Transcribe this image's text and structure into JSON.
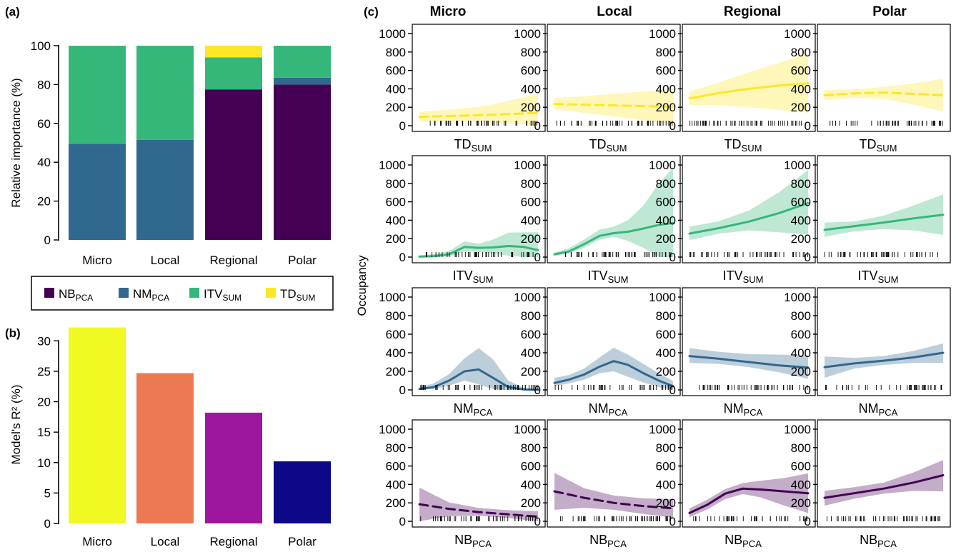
{
  "panels": {
    "a": {
      "letter": "(a)"
    },
    "b": {
      "letter": "(b)"
    },
    "c": {
      "letter": "(c)"
    }
  },
  "colors": {
    "NB": "#440154",
    "NM": "#31688e",
    "ITV": "#35b779",
    "TD": "#fde725",
    "micro_bar": "#f0f921",
    "local_bar": "#ed7953",
    "regional_bar": "#9c179e",
    "polar_bar": "#0d0887"
  },
  "legend": {
    "items": [
      {
        "key": "NB",
        "main": "NB",
        "sub": "PCA"
      },
      {
        "key": "NM",
        "main": "NM",
        "sub": "PCA"
      },
      {
        "key": "ITV",
        "main": "ITV",
        "sub": "SUM"
      },
      {
        "key": "TD",
        "main": "TD",
        "sub": "SUM"
      }
    ]
  },
  "chart_data": [
    {
      "id": "a",
      "type": "bar",
      "stacked": true,
      "categories": [
        "Micro",
        "Local",
        "Regional",
        "Polar"
      ],
      "ylabel": "Relative importance (%)",
      "ylim": [
        0,
        100
      ],
      "yticks": [
        0,
        20,
        40,
        60,
        80,
        100
      ],
      "series": [
        {
          "name": "NB_PCA",
          "key": "NB",
          "values": [
            0,
            0,
            77.5,
            80
          ]
        },
        {
          "name": "NM_PCA",
          "key": "NM",
          "values": [
            49.5,
            51.5,
            0,
            3.5
          ]
        },
        {
          "name": "ITV_SUM",
          "key": "ITV",
          "values": [
            50.5,
            48.5,
            16.5,
            16.5
          ]
        },
        {
          "name": "TD_SUM",
          "key": "TD",
          "values": [
            0,
            0,
            6,
            0
          ]
        }
      ]
    },
    {
      "id": "b",
      "type": "bar",
      "categories": [
        "Micro",
        "Local",
        "Regional",
        "Polar"
      ],
      "values": [
        32.2,
        24.7,
        18.2,
        10.2
      ],
      "color_keys": [
        "micro_bar",
        "local_bar",
        "regional_bar",
        "polar_bar"
      ],
      "ylabel": "Model's R² (%)",
      "ylim": [
        0,
        32.5
      ],
      "yticks": [
        0,
        5,
        10,
        15,
        20,
        25,
        30
      ]
    },
    {
      "id": "c",
      "type": "line",
      "ylabel": "Occupancy",
      "columns": [
        "Micro",
        "Local",
        "Regional",
        "Polar"
      ],
      "ylim": [
        0,
        1000
      ],
      "yticks": [
        0,
        200,
        400,
        600,
        800,
        1000
      ],
      "rows": [
        {
          "variable": {
            "main": "TD",
            "sub": "SUM"
          },
          "color_key": "TD",
          "panels": [
            {
              "dashed": true,
              "x": [
                0,
                0.25,
                0.5,
                0.75,
                1
              ],
              "y": [
                95,
                105,
                115,
                125,
                140
              ],
              "lo": [
                45,
                45,
                40,
                25,
                0
              ],
              "hi": [
                150,
                175,
                205,
                270,
                345
              ]
            },
            {
              "dashed": true,
              "x": [
                0,
                0.25,
                0.5,
                0.75,
                1
              ],
              "y": [
                235,
                228,
                220,
                212,
                205
              ],
              "lo": [
                175,
                140,
                100,
                60,
                15
              ],
              "hi": [
                300,
                320,
                345,
                370,
                400
              ]
            },
            {
              "dashed": false,
              "x": [
                0,
                0.25,
                0.5,
                0.75,
                1
              ],
              "y": [
                295,
                355,
                400,
                435,
                460
              ],
              "lo": [
                225,
                225,
                200,
                170,
                140
              ],
              "hi": [
                370,
                470,
                580,
                680,
                785
              ]
            },
            {
              "dashed": true,
              "x": [
                0,
                0.25,
                0.5,
                0.75,
                1
              ],
              "y": [
                330,
                350,
                360,
                345,
                330
              ],
              "lo": [
                275,
                305,
                290,
                230,
                155
              ],
              "hi": [
                390,
                395,
                420,
                460,
                510
              ]
            }
          ]
        },
        {
          "variable": {
            "main": "ITV",
            "sub": "SUM"
          },
          "color_key": "ITV",
          "panels": [
            {
              "dashed": false,
              "x": [
                0,
                0.12,
                0.25,
                0.38,
                0.5,
                0.62,
                0.75,
                0.88,
                1
              ],
              "y": [
                5,
                10,
                30,
                110,
                100,
                105,
                120,
                110,
                75
              ],
              "lo": [
                0,
                0,
                5,
                60,
                55,
                40,
                15,
                0,
                0
              ],
              "hi": [
                20,
                30,
                65,
                170,
                145,
                190,
                265,
                270,
                270
              ]
            },
            {
              "dashed": false,
              "x": [
                0,
                0.12,
                0.25,
                0.38,
                0.5,
                0.62,
                0.75,
                0.88,
                1
              ],
              "y": [
                30,
                60,
                140,
                230,
                260,
                275,
                310,
                350,
                370
              ],
              "lo": [
                15,
                40,
                100,
                190,
                220,
                175,
                100,
                0,
                0
              ],
              "hi": [
                50,
                95,
                190,
                300,
                330,
                400,
                560,
                800,
                970
              ]
            },
            {
              "dashed": false,
              "x": [
                0,
                0.25,
                0.5,
                0.75,
                1
              ],
              "y": [
                255,
                315,
                385,
                475,
                585
              ],
              "lo": [
                185,
                255,
                290,
                270,
                245
              ],
              "hi": [
                330,
                390,
                505,
                700,
                945
              ]
            },
            {
              "dashed": false,
              "x": [
                0,
                0.25,
                0.5,
                0.75,
                1
              ],
              "y": [
                295,
                335,
                375,
                420,
                460
              ],
              "lo": [
                220,
                280,
                305,
                290,
                240
              ],
              "hi": [
                375,
                385,
                450,
                560,
                680
              ]
            }
          ]
        },
        {
          "variable": {
            "main": "NM",
            "sub": "PCA"
          },
          "color_key": "NM",
          "panels": [
            {
              "dashed": false,
              "x": [
                0,
                0.12,
                0.25,
                0.38,
                0.5,
                0.62,
                0.75,
                0.88,
                1
              ],
              "y": [
                10,
                30,
                100,
                200,
                220,
                130,
                30,
                5,
                0
              ],
              "lo": [
                0,
                10,
                45,
                100,
                60,
                10,
                0,
                0,
                0
              ],
              "hi": [
                30,
                70,
                170,
                340,
                450,
                330,
                100,
                20,
                5
              ]
            },
            {
              "dashed": false,
              "x": [
                0,
                0.12,
                0.25,
                0.38,
                0.5,
                0.62,
                0.75,
                0.88,
                1
              ],
              "y": [
                75,
                110,
                165,
                250,
                310,
                270,
                180,
                100,
                40
              ],
              "lo": [
                40,
                70,
                110,
                180,
                200,
                140,
                80,
                30,
                0
              ],
              "hi": [
                130,
                160,
                230,
                350,
                455,
                380,
                280,
                180,
                95
              ]
            },
            {
              "dashed": false,
              "x": [
                0,
                0.25,
                0.5,
                0.75,
                1
              ],
              "y": [
                365,
                335,
                300,
                265,
                240
              ],
              "lo": [
                290,
                280,
                245,
                190,
                120
              ],
              "hi": [
                450,
                410,
                385,
                380,
                375
              ]
            },
            {
              "dashed": false,
              "x": [
                0,
                0.25,
                0.5,
                0.75,
                1
              ],
              "y": [
                245,
                285,
                315,
                350,
                400
              ],
              "lo": [
                130,
                230,
                270,
                290,
                290
              ],
              "hi": [
                360,
                345,
                365,
                420,
                500
              ]
            }
          ]
        },
        {
          "variable": {
            "main": "NB",
            "sub": "PCA"
          },
          "color_key": "NB",
          "panels": [
            {
              "dashed": true,
              "x": [
                0,
                0.25,
                0.5,
                0.75,
                1
              ],
              "y": [
                185,
                135,
                100,
                75,
                50
              ],
              "lo": [
                0,
                55,
                60,
                35,
                0
              ],
              "hi": [
                365,
                205,
                145,
                120,
                110
              ]
            },
            {
              "dashed": true,
              "x": [
                0,
                0.25,
                0.5,
                0.75,
                1
              ],
              "y": [
                325,
                255,
                200,
                165,
                140
              ],
              "lo": [
                125,
                145,
                125,
                80,
                40
              ],
              "hi": [
                525,
                360,
                280,
                250,
                240
              ]
            },
            {
              "dashed": false,
              "x": [
                0,
                0.15,
                0.3,
                0.45,
                0.6,
                0.8,
                1
              ],
              "y": [
                90,
                180,
                300,
                355,
                345,
                325,
                305
              ],
              "lo": [
                45,
                130,
                240,
                295,
                260,
                170,
                90
              ],
              "hi": [
                140,
                235,
                350,
                415,
                440,
                470,
                520
              ]
            },
            {
              "dashed": false,
              "x": [
                0,
                0.25,
                0.5,
                0.75,
                1
              ],
              "y": [
                255,
                305,
                355,
                420,
                500
              ],
              "lo": [
                170,
                245,
                300,
                330,
                325
              ],
              "hi": [
                330,
                370,
                420,
                530,
                665
              ]
            }
          ]
        }
      ]
    }
  ]
}
